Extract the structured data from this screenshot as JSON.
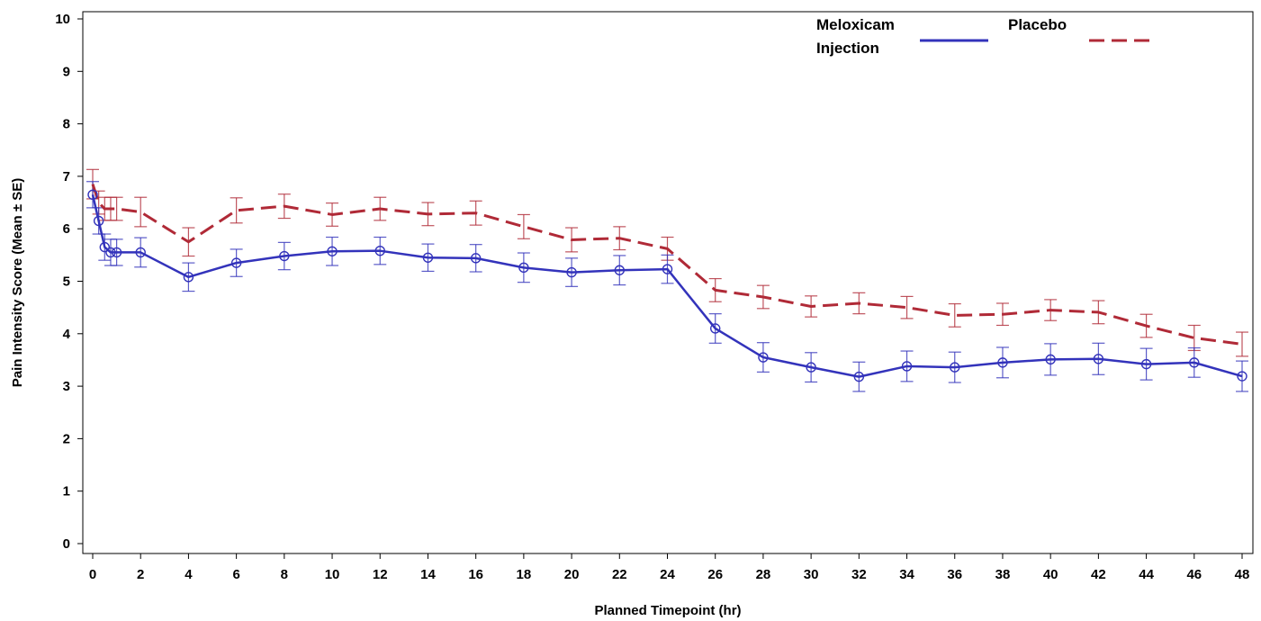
{
  "chart_data": {
    "type": "line",
    "xlabel": "Planned Timepoint (hr)",
    "ylabel": "Pain Intensity Score (Mean ± SE)",
    "xlim": [
      0,
      48
    ],
    "ylim": [
      0,
      10
    ],
    "xticks": [
      0,
      2,
      4,
      6,
      8,
      10,
      12,
      14,
      16,
      18,
      20,
      22,
      24,
      26,
      28,
      30,
      32,
      34,
      36,
      38,
      40,
      42,
      44,
      46,
      48
    ],
    "yticks": [
      0,
      1,
      2,
      3,
      4,
      5,
      6,
      7,
      8,
      9,
      10
    ],
    "grid": false,
    "legend_position": "top-right",
    "series": [
      {
        "name": "Meloxicam Injection",
        "color": "#3333bb",
        "line_style": "solid",
        "marker": "circle",
        "x": [
          0,
          0.25,
          0.5,
          0.75,
          1,
          2,
          4,
          6,
          8,
          10,
          12,
          14,
          16,
          18,
          20,
          22,
          24,
          26,
          28,
          30,
          32,
          34,
          36,
          38,
          40,
          42,
          44,
          46,
          48
        ],
        "y": [
          6.65,
          6.15,
          5.65,
          5.55,
          5.55,
          5.55,
          5.08,
          5.35,
          5.48,
          5.57,
          5.58,
          5.45,
          5.44,
          5.26,
          5.17,
          5.21,
          5.23,
          4.1,
          3.55,
          3.36,
          3.18,
          3.38,
          3.36,
          3.45,
          3.51,
          3.52,
          3.42,
          3.45,
          3.19
        ],
        "se": [
          0.25,
          0.25,
          0.25,
          0.25,
          0.25,
          0.28,
          0.27,
          0.26,
          0.26,
          0.27,
          0.26,
          0.26,
          0.26,
          0.28,
          0.27,
          0.28,
          0.27,
          0.28,
          0.28,
          0.28,
          0.28,
          0.29,
          0.29,
          0.29,
          0.3,
          0.3,
          0.3,
          0.28,
          0.29
        ]
      },
      {
        "name": "Placebo",
        "color": "#b02a37",
        "line_style": "dashed",
        "marker": "none",
        "x": [
          0,
          0.25,
          0.5,
          0.75,
          1,
          2,
          4,
          6,
          8,
          10,
          12,
          14,
          16,
          18,
          20,
          22,
          24,
          26,
          28,
          30,
          32,
          34,
          36,
          38,
          40,
          42,
          44,
          46,
          48
        ],
        "y": [
          6.85,
          6.5,
          6.38,
          6.38,
          6.38,
          6.32,
          5.75,
          6.35,
          6.43,
          6.27,
          6.38,
          6.28,
          6.3,
          6.04,
          5.79,
          5.82,
          5.62,
          4.83,
          4.7,
          4.52,
          4.58,
          4.5,
          4.35,
          4.37,
          4.45,
          4.41,
          4.15,
          3.92,
          3.8
        ]
      }
    ],
    "placebo_se": [
      0.28,
      0.22,
      0.22,
      0.22,
      0.22,
      0.28,
      0.27,
      0.24,
      0.23,
      0.22,
      0.22,
      0.22,
      0.23,
      0.23,
      0.23,
      0.22,
      0.22,
      0.22,
      0.22,
      0.2,
      0.2,
      0.21,
      0.22,
      0.21,
      0.2,
      0.22,
      0.22,
      0.24,
      0.23
    ]
  },
  "legend": {
    "meloxicam_line1": "Meloxicam",
    "meloxicam_line2": "Injection",
    "placebo": "Placebo"
  }
}
